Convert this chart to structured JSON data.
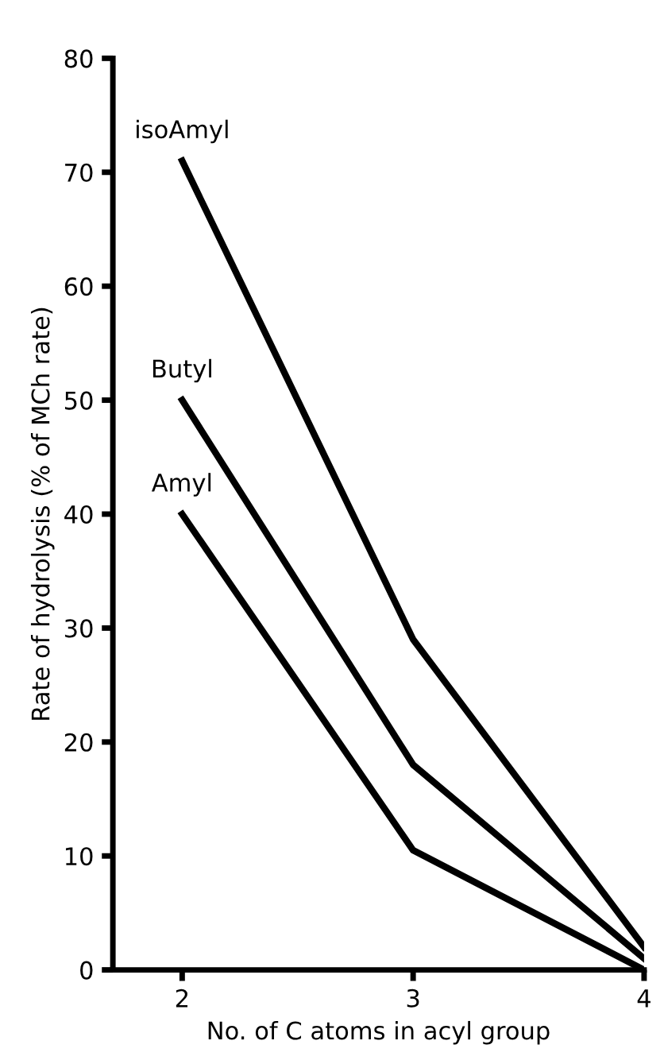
{
  "chart_data": {
    "type": "line",
    "xlabel": "No. of C atoms in acyl group",
    "ylabel": "Rate of hydrolysis (% of MCh rate)",
    "x": [
      2,
      3,
      4
    ],
    "series": [
      {
        "name": "isoAmyl",
        "color": "#000000",
        "values": [
          71,
          29,
          2
        ]
      },
      {
        "name": "Butyl",
        "color": "#000000",
        "values": [
          50,
          18,
          1
        ]
      },
      {
        "name": "Amyl",
        "color": "#000000",
        "values": [
          40,
          10.5,
          0
        ]
      }
    ],
    "xlim": [
      1.7,
      4
    ],
    "xticks": [
      2,
      3,
      4
    ],
    "ylim": [
      0,
      80
    ],
    "yticks": [
      0,
      10,
      20,
      30,
      40,
      50,
      60,
      70,
      80
    ],
    "grid": false,
    "legend": false,
    "marker": "none",
    "line_style": "solid"
  }
}
